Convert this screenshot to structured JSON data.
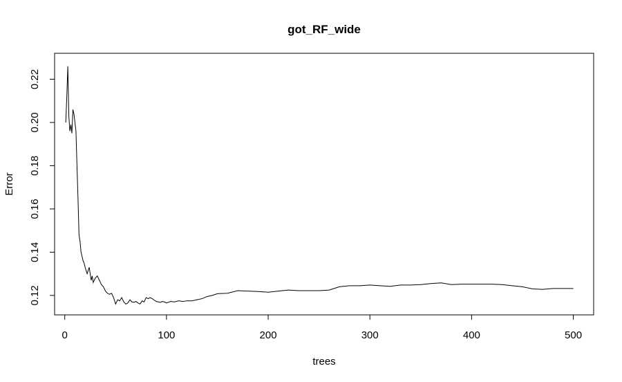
{
  "chart_data": {
    "type": "line",
    "title": "got_RF_wide",
    "xlabel": "trees",
    "ylabel": "Error",
    "xlim": [
      -10,
      520
    ],
    "ylim": [
      0.111,
      0.232
    ],
    "xticks": [
      0,
      100,
      200,
      300,
      400,
      500
    ],
    "xtick_labels": [
      "0",
      "100",
      "200",
      "300",
      "400",
      "500"
    ],
    "yticks": [
      0.12,
      0.14,
      0.16,
      0.18,
      0.2,
      0.22
    ],
    "ytick_labels": [
      "0.12",
      "0.14",
      "0.16",
      "0.18",
      "0.20",
      "0.22"
    ],
    "grid": false,
    "series": [
      {
        "x": [
          1,
          2,
          3,
          4,
          5,
          6,
          7,
          8,
          9,
          10,
          11,
          12,
          13,
          14,
          15,
          16,
          17,
          18,
          19,
          20,
          22,
          24,
          26,
          27,
          28,
          30,
          32,
          34,
          36,
          38,
          40,
          42,
          44,
          46,
          48,
          50,
          52,
          54,
          56,
          58,
          60,
          62,
          64,
          66,
          68,
          70,
          72,
          74,
          76,
          78,
          80,
          82,
          84,
          86,
          88,
          90,
          92,
          94,
          96,
          98,
          100,
          104,
          108,
          112,
          116,
          120,
          125,
          130,
          135,
          140,
          145,
          150,
          160,
          170,
          180,
          190,
          200,
          210,
          220,
          230,
          240,
          250,
          260,
          270,
          280,
          290,
          300,
          310,
          320,
          330,
          340,
          350,
          360,
          370,
          380,
          390,
          400,
          410,
          420,
          430,
          440,
          450,
          460,
          470,
          480,
          490,
          500
        ],
        "y": [
          0.2,
          0.212,
          0.226,
          0.203,
          0.196,
          0.199,
          0.195,
          0.206,
          0.204,
          0.2,
          0.196,
          0.18,
          0.165,
          0.148,
          0.145,
          0.14,
          0.138,
          0.136,
          0.135,
          0.133,
          0.13,
          0.133,
          0.127,
          0.129,
          0.126,
          0.128,
          0.129,
          0.127,
          0.125,
          0.124,
          0.122,
          0.121,
          0.1205,
          0.121,
          0.119,
          0.116,
          0.118,
          0.1175,
          0.119,
          0.117,
          0.116,
          0.1165,
          0.118,
          0.117,
          0.1168,
          0.1172,
          0.1165,
          0.116,
          0.1175,
          0.117,
          0.119,
          0.1185,
          0.119,
          0.1185,
          0.1178,
          0.1172,
          0.117,
          0.1168,
          0.1172,
          0.117,
          0.1165,
          0.1172,
          0.117,
          0.1175,
          0.1172,
          0.1175,
          0.1175,
          0.118,
          0.1185,
          0.1195,
          0.12,
          0.1208,
          0.121,
          0.1222,
          0.122,
          0.1218,
          0.1215,
          0.122,
          0.1225,
          0.1222,
          0.1222,
          0.1222,
          0.1225,
          0.124,
          0.1245,
          0.1245,
          0.1248,
          0.1245,
          0.1242,
          0.1248,
          0.1248,
          0.125,
          0.1255,
          0.1258,
          0.125,
          0.1252,
          0.1252,
          0.1252,
          0.1252,
          0.125,
          0.1245,
          0.124,
          0.123,
          0.1228,
          0.1232,
          0.1232,
          0.1232
        ]
      }
    ]
  }
}
